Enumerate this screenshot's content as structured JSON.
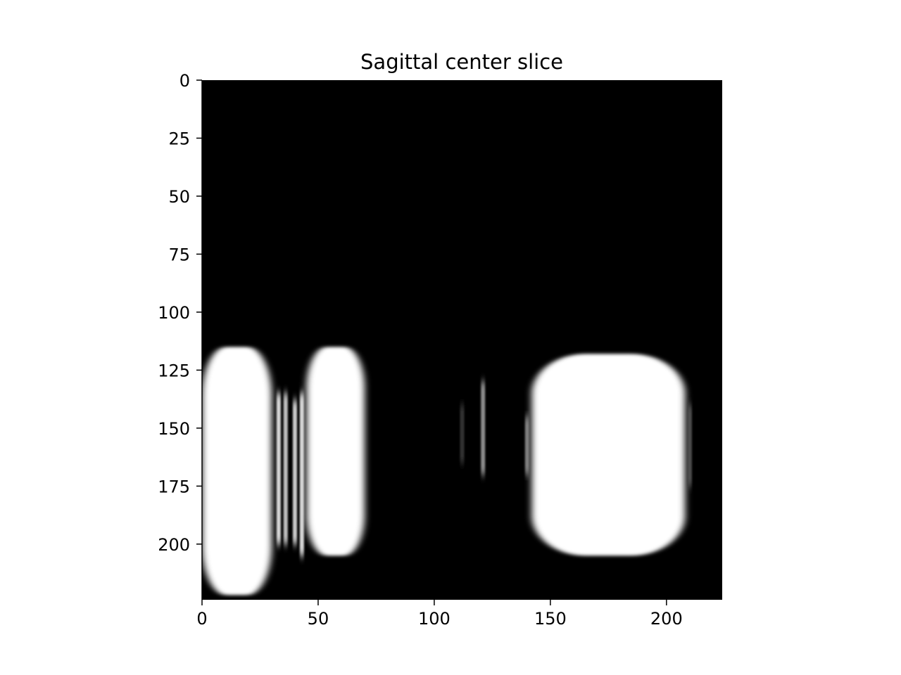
{
  "chart_data": {
    "type": "heatmap",
    "title": "Sagittal center slice",
    "xlabel": "",
    "ylabel": "",
    "colormap": "gray",
    "background_color": "#000000",
    "foreground_color": "#ffffff",
    "xlim": [
      0,
      224
    ],
    "ylim": [
      224,
      0
    ],
    "x_ticks": [
      0,
      50,
      100,
      150,
      200
    ],
    "y_ticks": [
      0,
      25,
      50,
      75,
      100,
      125,
      150,
      175,
      200
    ],
    "x_tick_labels": [
      "0",
      "50",
      "100",
      "150",
      "200"
    ],
    "y_tick_labels": [
      "0",
      "25",
      "50",
      "75",
      "100",
      "125",
      "150",
      "175",
      "200"
    ],
    "grid": false,
    "bright_regions": [
      {
        "name": "left blob",
        "x_range": [
          0,
          30
        ],
        "y_range": [
          115,
          222
        ],
        "intensity": 1.0
      },
      {
        "name": "left-center blob",
        "x_range": [
          45,
          70
        ],
        "y_range": [
          115,
          205
        ],
        "intensity": 1.0
      },
      {
        "name": "right blob",
        "x_range": [
          142,
          208
        ],
        "y_range": [
          118,
          205
        ],
        "intensity": 1.0
      }
    ],
    "vertical_streaks": [
      {
        "x": 33,
        "y_range": [
          135,
          200
        ],
        "intensity": 0.85
      },
      {
        "x": 36,
        "y_range": [
          135,
          200
        ],
        "intensity": 0.75
      },
      {
        "x": 40,
        "y_range": [
          138,
          200
        ],
        "intensity": 0.8
      },
      {
        "x": 43,
        "y_range": [
          135,
          205
        ],
        "intensity": 0.85
      },
      {
        "x": 121,
        "y_range": [
          130,
          170
        ],
        "intensity": 0.55
      },
      {
        "x": 112,
        "y_range": [
          140,
          165
        ],
        "intensity": 0.2
      },
      {
        "x": 140,
        "y_range": [
          145,
          170
        ],
        "intensity": 0.5
      },
      {
        "x": 210,
        "y_range": [
          140,
          175
        ],
        "intensity": 0.3
      }
    ]
  }
}
